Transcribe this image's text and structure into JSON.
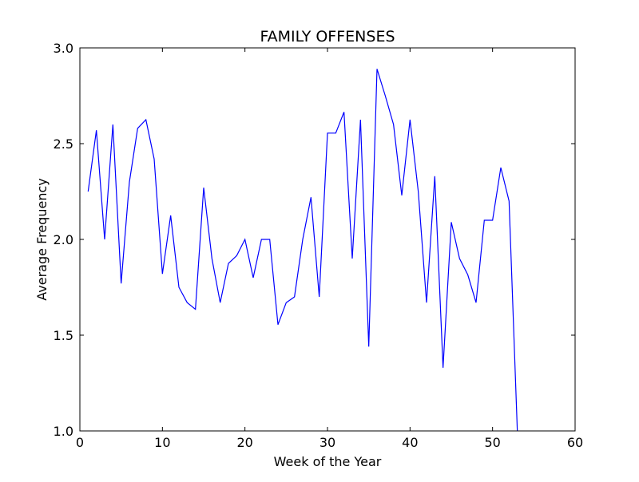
{
  "chart_data": {
    "type": "line",
    "title": "FAMILY OFFENSES",
    "xlabel": "Week of the Year",
    "ylabel": "Average Frequency",
    "xlim": [
      0,
      60
    ],
    "ylim": [
      1.0,
      3.0
    ],
    "xticks": [
      0,
      10,
      20,
      30,
      40,
      50,
      60
    ],
    "yticks": [
      1.0,
      1.5,
      2.0,
      2.5,
      3.0
    ],
    "xtick_labels": [
      "0",
      "10",
      "20",
      "30",
      "40",
      "50",
      "60"
    ],
    "ytick_labels": [
      "1.0",
      "1.5",
      "2.0",
      "2.5",
      "3.0"
    ],
    "grid": false,
    "series": [
      {
        "color": "#0000ff",
        "x": [
          1,
          2,
          3,
          4,
          5,
          6,
          7,
          8,
          9,
          10,
          11,
          12,
          13,
          14,
          15,
          16,
          17,
          18,
          19,
          20,
          21,
          22,
          23,
          24,
          25,
          26,
          27,
          28,
          29,
          30,
          31,
          32,
          33,
          34,
          35,
          36,
          37,
          38,
          39,
          40,
          41,
          42,
          43,
          44,
          45,
          46,
          47,
          48,
          49,
          50,
          51,
          52,
          53
        ],
        "y": [
          2.25,
          2.57,
          2.0,
          2.6,
          1.77,
          2.3,
          2.58,
          2.625,
          2.42,
          1.82,
          2.125,
          1.75,
          1.67,
          1.635,
          2.27,
          1.9,
          1.67,
          1.875,
          1.915,
          2.0,
          1.8,
          2.0,
          2.0,
          1.555,
          1.67,
          1.7,
          2.0,
          2.22,
          1.7,
          2.555,
          2.555,
          2.665,
          1.9,
          2.625,
          1.44,
          2.89,
          2.75,
          2.6,
          2.23,
          2.625,
          2.25,
          1.67,
          2.33,
          1.33,
          2.09,
          1.9,
          1.815,
          1.67,
          2.1,
          2.1,
          2.375,
          2.2,
          1.0
        ]
      }
    ]
  }
}
